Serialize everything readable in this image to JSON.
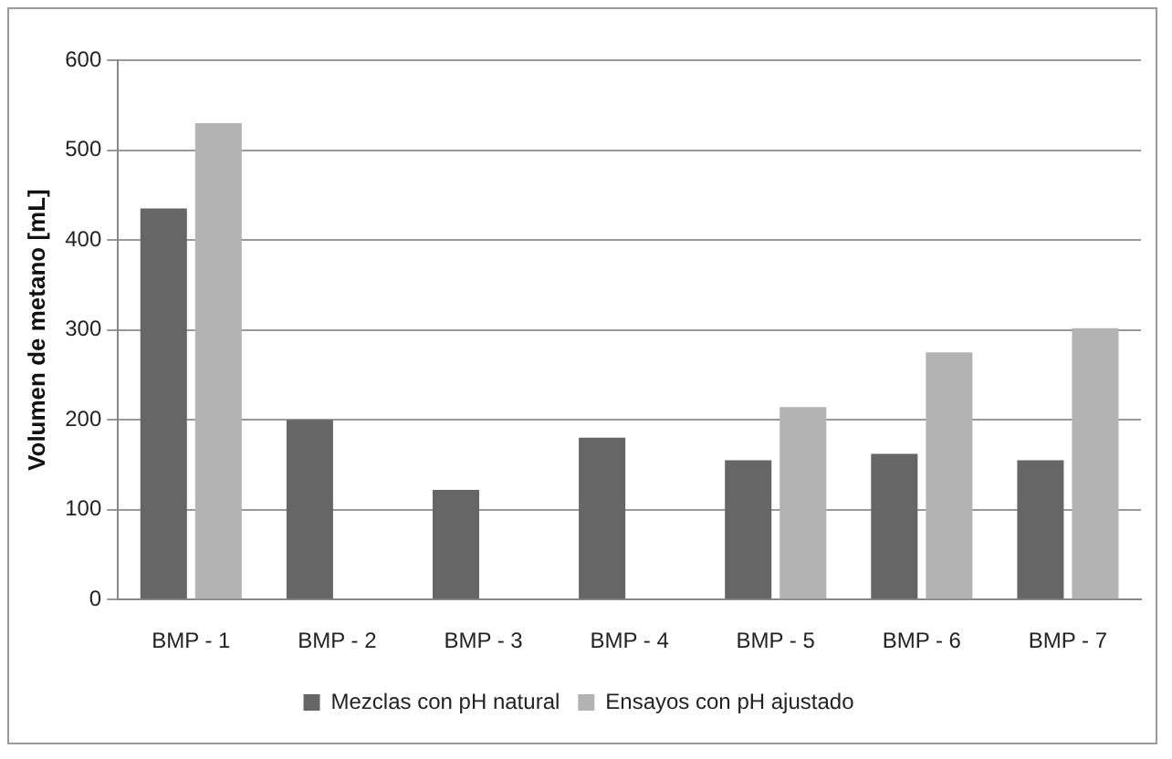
{
  "chart_data": {
    "type": "bar",
    "ylabel": "Volumen de metano [mL]",
    "categories": [
      "BMP - 1",
      "BMP - 2",
      "BMP - 3",
      "BMP - 4",
      "BMP - 5",
      "BMP - 6",
      "BMP - 7"
    ],
    "series": [
      {
        "name": "Mezclas con pH natural",
        "color": "#666666",
        "values": [
          435,
          200,
          122,
          180,
          155,
          162,
          155
        ]
      },
      {
        "name": "Ensayos con pH ajustado",
        "color": "#b3b3b3",
        "values": [
          530,
          null,
          null,
          null,
          214,
          275,
          302
        ]
      }
    ],
    "ylim": [
      0,
      600
    ],
    "yticks": [
      0,
      100,
      200,
      300,
      400,
      500,
      600
    ],
    "grid": "y",
    "legend": "bottom"
  }
}
